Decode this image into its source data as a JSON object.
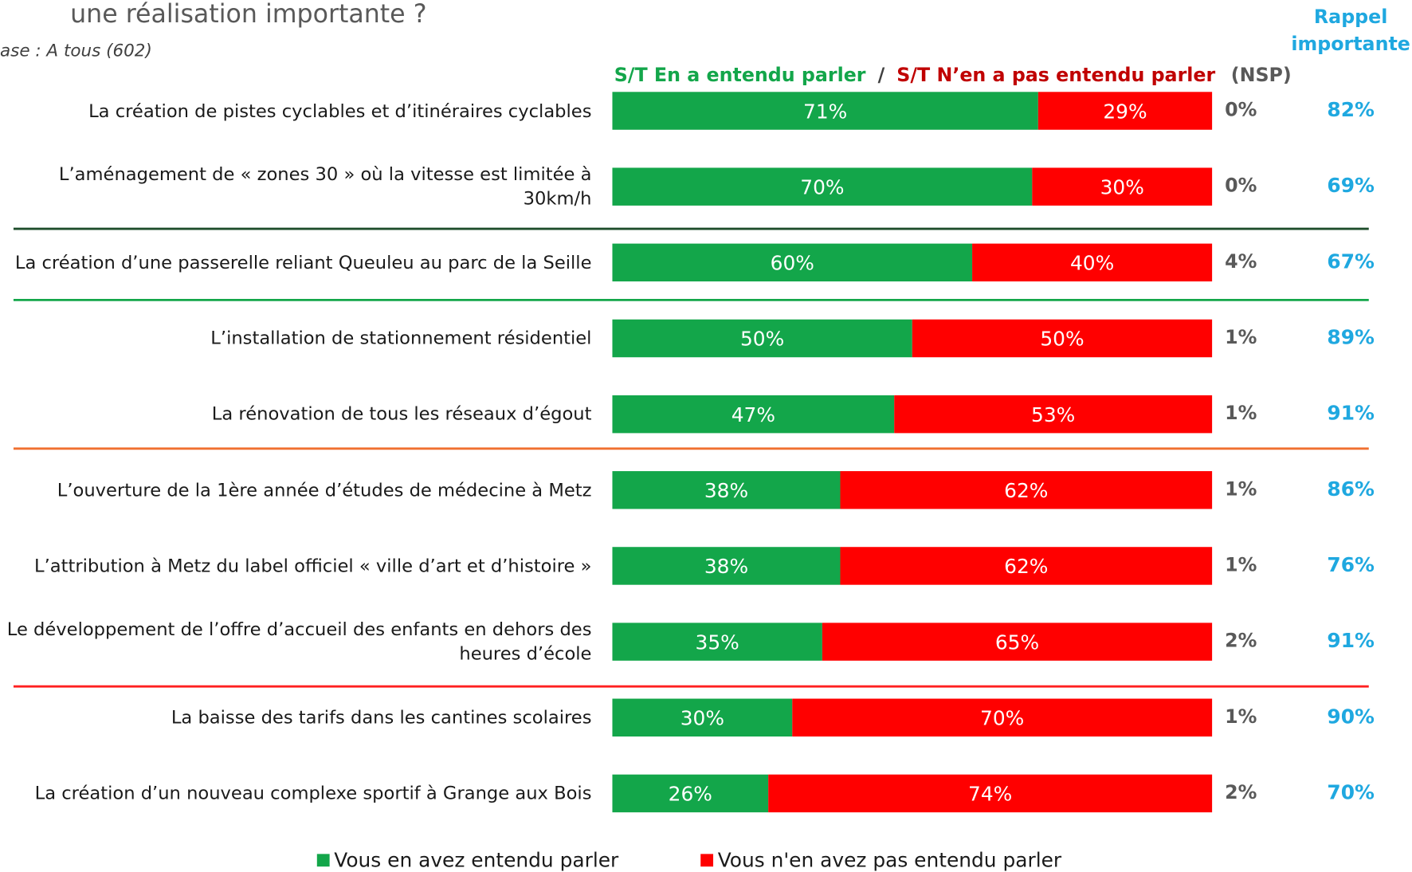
{
  "chart_data": {
    "type": "stacked_bar_horizontal",
    "title": "une réalisation importante ?",
    "subtitle": "ase : A tous (602)",
    "header": {
      "green": "S/T En a entendu parler",
      "sep": "/",
      "red": "S/T N’en a pas entendu parler",
      "nsp": "(NSP)"
    },
    "rappel_header": [
      "Rappel",
      "importante"
    ],
    "categories": [
      "La création de pistes cyclables et d’itinéraires cyclables",
      "L’aménagement de « zones 30 » où la vitesse est limitée à 30km/h",
      "La création d’une passerelle reliant Queuleu au parc de la Seille",
      "L’installation de stationnement résidentiel",
      "La rénovation de tous les réseaux d’égout",
      "L’ouverture de la 1ère année d’études de médecine à Metz",
      "L’attribution à Metz du label officiel « ville d’art et d’histoire »",
      "Le développement de l’offre d’accueil des enfants en dehors des heures d’école",
      "La baisse des tarifs dans les cantines scolaires",
      "La création d’un nouveau complexe sportif à Grange aux Bois"
    ],
    "series": [
      {
        "name": "Vous en avez entendu parler",
        "color": "#13a64a",
        "values": [
          71,
          70,
          60,
          50,
          47,
          38,
          38,
          35,
          30,
          26
        ],
        "value_labels": [
          "71%",
          "70%",
          "60%",
          "50%",
          "47%",
          "38%",
          "38%",
          "35%",
          "30%",
          "26%"
        ]
      },
      {
        "name": "Vous n'en avez pas entendu parler",
        "color": "#ff0000",
        "values": [
          29,
          30,
          40,
          50,
          53,
          62,
          62,
          65,
          70,
          74
        ],
        "value_labels": [
          "29%",
          "30%",
          "40%",
          "50%",
          "53%",
          "62%",
          "62%",
          "65%",
          "70%",
          "74%"
        ]
      }
    ],
    "nsp": {
      "values": [
        0,
        0,
        4,
        1,
        1,
        1,
        1,
        2,
        1,
        2
      ],
      "value_labels": [
        "0%",
        "0%",
        "4%",
        "1%",
        "1%",
        "1%",
        "1%",
        "2%",
        "1%",
        "2%"
      ]
    },
    "rappel": {
      "color": "#1fa8e0",
      "values": [
        82,
        69,
        67,
        89,
        91,
        86,
        76,
        91,
        90,
        70
      ],
      "value_labels": [
        "82%",
        "69%",
        "67%",
        "89%",
        "91%",
        "86%",
        "76%",
        "91%",
        "90%",
        "70%"
      ]
    },
    "xlim": [
      0,
      100
    ]
  }
}
